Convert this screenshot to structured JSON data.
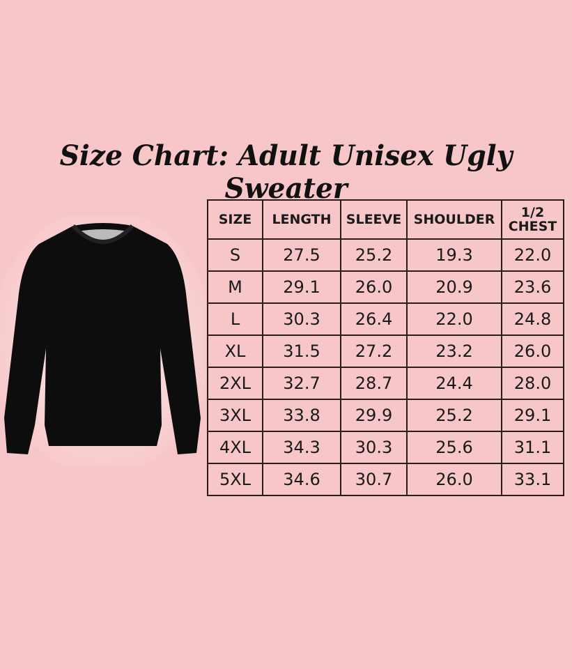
{
  "title": "Size Chart: Adult Unisex Ugly Sweater",
  "table": {
    "headers": [
      "SIZE",
      "LENGTH",
      "SLEEVE",
      "SHOULDER",
      "1/2 CHEST"
    ],
    "rows": [
      [
        "S",
        "27.5",
        "25.2",
        "19.3",
        "22.0"
      ],
      [
        "M",
        "29.1",
        "26.0",
        "20.9",
        "23.6"
      ],
      [
        "L",
        "30.3",
        "26.4",
        "22.0",
        "24.8"
      ],
      [
        "XL",
        "31.5",
        "27.2",
        "23.2",
        "26.0"
      ],
      [
        "2XL",
        "32.7",
        "28.7",
        "24.4",
        "28.0"
      ],
      [
        "3XL",
        "33.8",
        "29.9",
        "25.2",
        "29.1"
      ],
      [
        "4XL",
        "34.3",
        "30.3",
        "25.6",
        "31.1"
      ],
      [
        "5XL",
        "34.6",
        "30.7",
        "26.0",
        "33.1"
      ]
    ]
  },
  "colors": {
    "background": "#f7c6c8",
    "text": "#111111",
    "sweater": "#0d0d0d"
  }
}
